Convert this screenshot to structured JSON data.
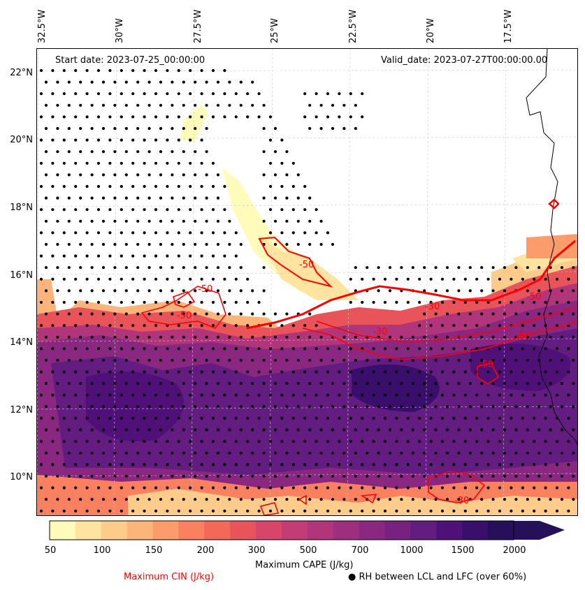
{
  "map": {
    "start_date": "Start date: 2023-07-25_00:00:00",
    "valid_date": "Valid_date: 2023-07-27T00:00:00.00",
    "lon_labels": [
      "32.5°W",
      "30°W",
      "27.5°W",
      "25°W",
      "22.5°W",
      "20°W",
      "17.5°W"
    ],
    "lat_labels": [
      "22°N",
      "20°N",
      "18°N",
      "16°N",
      "14°N",
      "12°N",
      "10°N"
    ],
    "contour_labels": [
      "-50",
      "-50",
      "-50",
      "-30",
      "-30",
      "-50",
      "-50",
      "-50",
      "-30"
    ]
  },
  "colorbar": {
    "label": "Maximum CAPE (J/kg)",
    "ticks": [
      "50",
      "100",
      "150",
      "200",
      "300",
      "500",
      "700",
      "1000",
      "1500",
      "2000"
    ],
    "colors": [
      "#fffcbb",
      "#fee3a1",
      "#fdcc8b",
      "#fdb47a",
      "#fc9c6c",
      "#f9815f",
      "#f36857",
      "#e85459",
      "#d7456a",
      "#c43c75",
      "#b1357b",
      "#9e2f7f",
      "#8a2881",
      "#772181",
      "#631c7f",
      "#4f1178",
      "#3a0e6b",
      "#26105a"
    ]
  },
  "legend": {
    "cin_label": "Maximum CIN (J/kg)",
    "rh_label": "● RH between LCL and LFC (over 60%)",
    "cin_color": "#ff0000"
  }
}
